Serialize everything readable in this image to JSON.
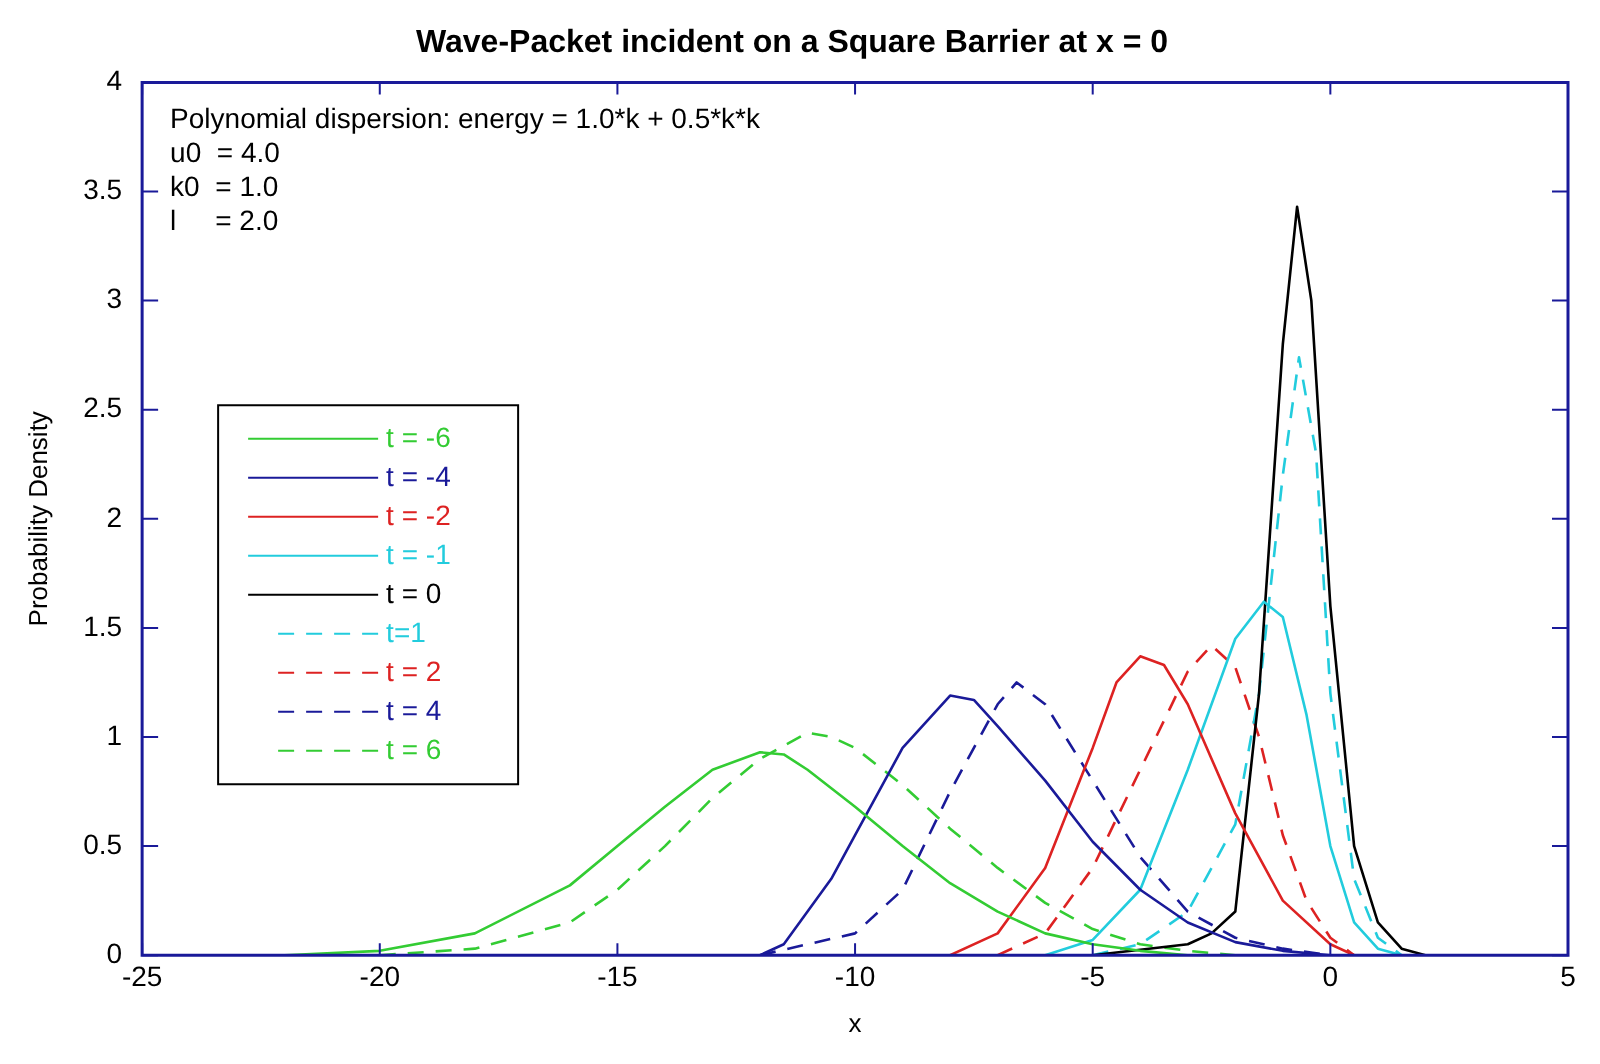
{
  "chart_data": {
    "type": "line",
    "title": "Wave-Packet incident on a Square Barrier at x = 0",
    "xlabel": "x",
    "ylabel": "Probability Density",
    "annotations": [
      "Polynomial dispersion: energy = 1.0*k + 0.5*k*k",
      "u0  = 4.0",
      "k0  = 1.0",
      "l     = 2.0"
    ],
    "xlim": [
      -25,
      5
    ],
    "xticks": [
      -25,
      -20,
      -15,
      -10,
      -5,
      0,
      5
    ],
    "ylim": [
      0,
      4
    ],
    "yticks": [
      0,
      0.5,
      1,
      1.5,
      2,
      2.5,
      3,
      3.5,
      4
    ],
    "grid": false,
    "legend": "left",
    "marker": "none",
    "series": [
      {
        "name": "t = -6",
        "color": "#33cc33",
        "line_style": "solid",
        "x": [
          -22,
          -20,
          -18,
          -16,
          -15,
          -14,
          -13,
          -12,
          -11.5,
          -11,
          -10,
          -9,
          -8,
          -7,
          -6,
          -5,
          -4,
          -3
        ],
        "values": [
          0,
          0.02,
          0.1,
          0.32,
          0.5,
          0.68,
          0.85,
          0.93,
          0.92,
          0.85,
          0.68,
          0.5,
          0.33,
          0.2,
          0.1,
          0.05,
          0.02,
          0
        ]
      },
      {
        "name": "t = -4",
        "color": "#1a1a99",
        "line_style": "solid",
        "x": [
          -12,
          -11.5,
          -10.5,
          -10,
          -9,
          -8,
          -7.5,
          -7,
          -6,
          -5,
          -4,
          -3,
          -2,
          -1,
          0
        ],
        "values": [
          0,
          0.05,
          0.35,
          0.55,
          0.95,
          1.19,
          1.17,
          1.05,
          0.8,
          0.52,
          0.3,
          0.15,
          0.06,
          0.02,
          0
        ]
      },
      {
        "name": "t = -2",
        "color": "#dd2222",
        "line_style": "solid",
        "x": [
          -8,
          -7,
          -6,
          -5,
          -4.5,
          -4,
          -3.5,
          -3,
          -2,
          -1,
          0,
          0.5
        ],
        "values": [
          0,
          0.1,
          0.4,
          0.95,
          1.25,
          1.37,
          1.33,
          1.15,
          0.65,
          0.25,
          0.05,
          0
        ]
      },
      {
        "name": "t = -1",
        "color": "#22ccdd",
        "line_style": "solid",
        "x": [
          -6,
          -5,
          -4,
          -3,
          -2,
          -1.4,
          -1,
          -0.5,
          0,
          0.5,
          1,
          1.5
        ],
        "values": [
          0,
          0.07,
          0.3,
          0.85,
          1.45,
          1.62,
          1.55,
          1.1,
          0.5,
          0.15,
          0.03,
          0
        ]
      },
      {
        "name": "t = 0",
        "color": "#000000",
        "line_style": "solid",
        "x": [
          -5,
          -3,
          -2.5,
          -2,
          -1.5,
          -1,
          -0.7,
          -0.4,
          0,
          0.5,
          1,
          1.5,
          2
        ],
        "values": [
          0,
          0.05,
          0.1,
          0.2,
          1.2,
          2.8,
          3.43,
          3.0,
          1.6,
          0.5,
          0.15,
          0.03,
          0
        ]
      },
      {
        "name": "t=1",
        "color": "#22ccdd",
        "line_style": "dashed",
        "x": [
          -5,
          -4,
          -3,
          -2,
          -1.5,
          -1,
          -0.66,
          -0.3,
          0,
          0.5,
          1,
          1.5
        ],
        "values": [
          0,
          0.05,
          0.2,
          0.6,
          1.2,
          2.2,
          2.74,
          2.3,
          1.2,
          0.35,
          0.08,
          0
        ]
      },
      {
        "name": "t = 2",
        "color": "#dd2222",
        "line_style": "dashed",
        "x": [
          -7,
          -6,
          -5,
          -4,
          -3,
          -2.5,
          -2,
          -1.5,
          -1,
          -0.5,
          0,
          0.5
        ],
        "values": [
          0,
          0.1,
          0.4,
          0.85,
          1.3,
          1.42,
          1.32,
          1.0,
          0.55,
          0.25,
          0.08,
          0
        ]
      },
      {
        "name": "t = 4",
        "color": "#1a1a99",
        "line_style": "dashed",
        "x": [
          -12,
          -10,
          -9,
          -8,
          -7,
          -6.6,
          -6,
          -5,
          -4,
          -3,
          -2,
          -1,
          0
        ],
        "values": [
          0,
          0.1,
          0.3,
          0.75,
          1.15,
          1.25,
          1.15,
          0.8,
          0.45,
          0.2,
          0.08,
          0.03,
          0
        ]
      },
      {
        "name": "t = 6",
        "color": "#33cc33",
        "line_style": "dashed",
        "x": [
          -20,
          -18,
          -16,
          -15,
          -14,
          -13,
          -12,
          -11,
          -10.5,
          -10,
          -9,
          -8,
          -7,
          -6,
          -5,
          -4,
          -3,
          -2
        ],
        "values": [
          0,
          0.03,
          0.15,
          0.3,
          0.5,
          0.72,
          0.9,
          1.02,
          1.0,
          0.95,
          0.78,
          0.58,
          0.4,
          0.24,
          0.12,
          0.05,
          0.02,
          0
        ]
      }
    ]
  }
}
